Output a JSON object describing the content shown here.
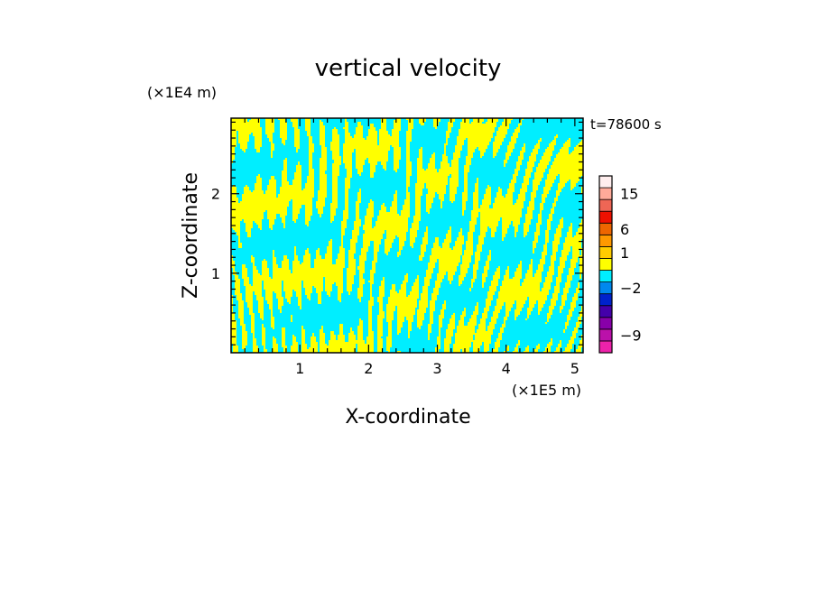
{
  "chart_data": {
    "type": "heatmap",
    "title": "vertical velocity",
    "xlabel": "X-coordinate",
    "ylabel": "Z-coordinate",
    "x_unit": "(×1E5 m)",
    "y_unit": "(×1E4 m)",
    "time_label": "t=78600 s",
    "xlim": [
      0,
      5.12
    ],
    "ylim": [
      0,
      2.95
    ],
    "x_ticks": [
      {
        "value": 1,
        "label": "1"
      },
      {
        "value": 2,
        "label": "2"
      },
      {
        "value": 3,
        "label": "3"
      },
      {
        "value": 4,
        "label": "4"
      },
      {
        "value": 5,
        "label": "5"
      }
    ],
    "y_ticks": [
      {
        "value": 1,
        "label": "1"
      },
      {
        "value": 2,
        "label": "2"
      }
    ],
    "grid": false,
    "colorbar": {
      "levels": [
        {
          "color": "#ee22aa"
        },
        {
          "color": "#bb11aa"
        },
        {
          "color": "#8800aa"
        },
        {
          "color": "#4400aa"
        },
        {
          "color": "#0022cc"
        },
        {
          "color": "#0088ee"
        },
        {
          "color": "#00eeff"
        },
        {
          "color": "#ffff00"
        },
        {
          "color": "#ffcc00"
        },
        {
          "color": "#ff9900"
        },
        {
          "color": "#ee6600"
        },
        {
          "color": "#ee1100"
        },
        {
          "color": "#ee6655"
        },
        {
          "color": "#ffaa99"
        },
        {
          "color": "#ffeeee"
        }
      ],
      "labels": [
        {
          "level_index": 1,
          "text": "−9"
        },
        {
          "level_index": 5,
          "text": "−2"
        },
        {
          "level_index": 8,
          "text": "1"
        },
        {
          "level_index": 10,
          "text": "6"
        },
        {
          "level_index": 13,
          "text": "15"
        }
      ]
    },
    "field_colors": {
      "negative": "#00eeff",
      "positive": "#ffff00"
    }
  }
}
